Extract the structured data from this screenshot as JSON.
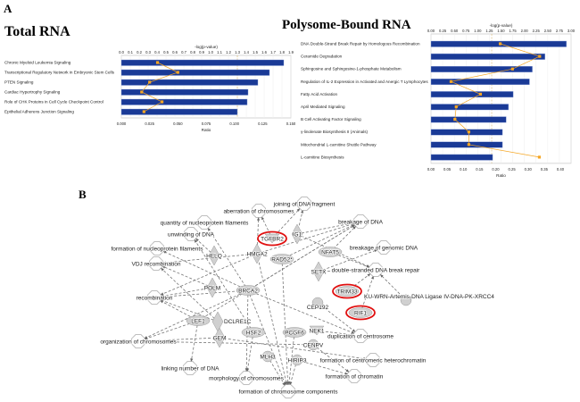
{
  "panels": {
    "a": "A",
    "b": "B"
  },
  "chart_data": [
    {
      "type": "bar",
      "title": "Total RNA",
      "top_axis_label": "-log(p-value)",
      "xlabel": "Ratio",
      "categories": [
        "Chronic Myeloid Leukemia Signaling",
        "Transcriptional Regulatory Network in Embryonic Stem Cells",
        "PTEN Signaling",
        "Cardiac Hypertrophy Signaling",
        "Role of CHK Proteins in Cell Cycle Checkpoint Control",
        "Epithelial Adherens Junction Signaling"
      ],
      "neg_log_p": [
        1.82,
        1.66,
        1.53,
        1.42,
        1.41,
        1.3
      ],
      "ratio": [
        0.032,
        0.05,
        0.025,
        0.018,
        0.036,
        0.02
      ],
      "top_ticks": [
        "0.0",
        "0.1",
        "0.2",
        "0.3",
        "0.4",
        "0.5",
        "0.6",
        "0.7",
        "0.8",
        "0.9",
        "1.0",
        "1.1",
        "1.2",
        "1.3",
        "1.4",
        "1.5",
        "1.6",
        "1.7",
        "1.8",
        "1.9"
      ],
      "bottom_ticks": [
        "0.000",
        "0.025",
        "0.050",
        "0.075",
        "0.100",
        "0.125",
        "0.150"
      ],
      "top_range": [
        0,
        1.9
      ],
      "ratio_range": [
        0,
        0.15
      ],
      "threshold": 1.3
    },
    {
      "type": "bar",
      "title": "Polysome-Bound RNA",
      "top_axis_label": "-log(p-value)",
      "xlabel": "Ratio",
      "categories": [
        "DNA Double-Strand Break Repair by Homologous Recombination",
        "Ceramide Degradation",
        "Sphingosine and Sphingosine-1-phosphate Metabolism",
        "Regulation of IL-2 Expression in Activated and Anergic T Lymphocytes",
        "Fatty Acid Activation",
        "April Mediated Signaling",
        "B Cell Activating Factor Signaling",
        "γ-linolenate Biosynthesis II (Animals)",
        "Mitochondrial L-carnitine Shuttle Pathway",
        "L-carnitine Biosynthesis"
      ],
      "neg_log_p": [
        2.9,
        2.44,
        2.17,
        2.11,
        1.76,
        1.66,
        1.61,
        1.53,
        1.53,
        1.32
      ],
      "ratio": [
        0.214,
        0.336,
        0.252,
        0.062,
        0.153,
        0.078,
        0.074,
        0.117,
        0.117,
        0.335
      ],
      "top_ticks": [
        "0.00",
        "0.25",
        "0.50",
        "0.75",
        "1.00",
        "1.25",
        "1.50",
        "1.75",
        "2.00",
        "2.25",
        "2.50",
        "2.75",
        "3.00"
      ],
      "bottom_ticks": [
        "0.00",
        "0.05",
        "0.10",
        "0.15",
        "0.20",
        "0.25",
        "0.30",
        "0.35",
        "0.40"
      ],
      "top_range": [
        0,
        3.0
      ],
      "ratio_range": [
        0,
        0.4
      ],
      "threshold": 1.3
    }
  ],
  "colors": {
    "bar": "#1a3a96",
    "ratio": "#f5a623",
    "highlight": "#e01010",
    "node": "#d0d0d0"
  },
  "network": {
    "functions": [
      "aberration of chromosomes",
      "joining of DNA fragment",
      "quantity of nucleoprotein filaments",
      "unwinding of DNA",
      "formation of nucleoprotein filaments",
      "VDJ recombination",
      "recombination",
      "organization of chromosomes",
      "linking number of DNA",
      "morphology of chromosomes",
      "formation of chromosome components",
      "formation of chromatin",
      "formation of centromeric heterochromatin",
      "duplication of centrosome",
      "breakage of DNA",
      "breakage of genomic DNA",
      "double-stranded DNA break repair"
    ],
    "genes": [
      "TGFBR2",
      "IG1",
      "HELQ",
      "HMGA2",
      "RAD52*",
      "NFAT5",
      "SETX",
      "POLM",
      "BRCA2",
      "TRIM33",
      "KU-WRN-Artemis-DNA Ligase IV-DNA-PK-XRCC4",
      "CEP192",
      "RIF1",
      "LEF1",
      "DCLRE1C",
      "GEM",
      "HSF2",
      "PCGF6",
      "NEK1",
      "CENPV",
      "MLH3",
      "HIRIP3"
    ],
    "highlighted": [
      "TGFBR2",
      "TRIM33",
      "RIF1"
    ],
    "edges": [
      [
        "TGFBR2",
        "aberration of chromosomes"
      ],
      [
        "TGFBR2",
        "joining of DNA fragment"
      ],
      [
        "IG1",
        "breakage of DNA"
      ],
      [
        "IG1",
        "joining of DNA fragment"
      ],
      [
        "IG1",
        "double-stranded DNA break repair"
      ],
      [
        "HELQ",
        "unwinding of DNA"
      ],
      [
        "HMGA2",
        "aberration of chromosomes"
      ],
      [
        "HMGA2",
        "recombination"
      ],
      [
        "HMGA2",
        "VDJ recombination"
      ],
      [
        "HMGA2",
        "breakage of DNA"
      ],
      [
        "RAD52*",
        "breakage of DNA"
      ],
      [
        "RAD52*",
        "formation of chromosome components"
      ],
      [
        "NFAT5",
        "breakage of DNA"
      ],
      [
        "NFAT5",
        "double-stranded DNA break repair"
      ],
      [
        "SETX",
        "double-stranded DNA break repair"
      ],
      [
        "SETX",
        "breakage of genomic DNA"
      ],
      [
        "POLM",
        "VDJ recombination"
      ],
      [
        "POLM",
        "recombination"
      ],
      [
        "BRCA2",
        "quantity of nucleoprotein filaments"
      ],
      [
        "BRCA2",
        "formation of nucleoprotein filaments"
      ],
      [
        "BRCA2",
        "recombination"
      ],
      [
        "BRCA2",
        "breakage of DNA"
      ],
      [
        "BRCA2",
        "duplication of centrosome"
      ],
      [
        "BRCA2",
        "formation of chromosome components"
      ],
      [
        "BRCA2",
        "organization of chromosomes"
      ],
      [
        "TRIM33",
        "double-stranded DNA break repair"
      ],
      [
        "KU-WRN-Artemis-DNA Ligase IV-DNA-PK-XRCC4",
        "double-stranded DNA break repair"
      ],
      [
        "RIF1",
        "double-stranded DNA break repair"
      ],
      [
        "CEP192",
        "duplication of centrosome"
      ],
      [
        "LEF1",
        "organization of chromosomes"
      ],
      [
        "LEF1",
        "linking number of DNA"
      ],
      [
        "LEF1",
        "recombination"
      ],
      [
        "LEF1",
        "breakage of DNA"
      ],
      [
        "DCLRE1C",
        "VDJ recombination"
      ],
      [
        "DCLRE1C",
        "recombination"
      ],
      [
        "GEM",
        "organization of chromosomes"
      ],
      [
        "GEM",
        "formation of centromeric heterochromatin"
      ],
      [
        "HSF2",
        "morphology of chromosomes"
      ],
      [
        "HSF2",
        "unwinding of DNA"
      ],
      [
        "PCGF6",
        "formation of chromosome components"
      ],
      [
        "NEK1",
        "duplication of centrosome"
      ],
      [
        "CENPV",
        "formation of chromatin"
      ],
      [
        "CENPV",
        "organization of chromosomes"
      ],
      [
        "MLH3",
        "formation of chromosome components"
      ],
      [
        "HIRIP3",
        "formation of chromosome components"
      ],
      [
        "HIRIP3",
        "formation of chromatin"
      ],
      [
        "BRCA2",
        "morphology of chromosomes"
      ],
      [
        "HMGA2",
        "formation of chromosome components"
      ]
    ]
  }
}
